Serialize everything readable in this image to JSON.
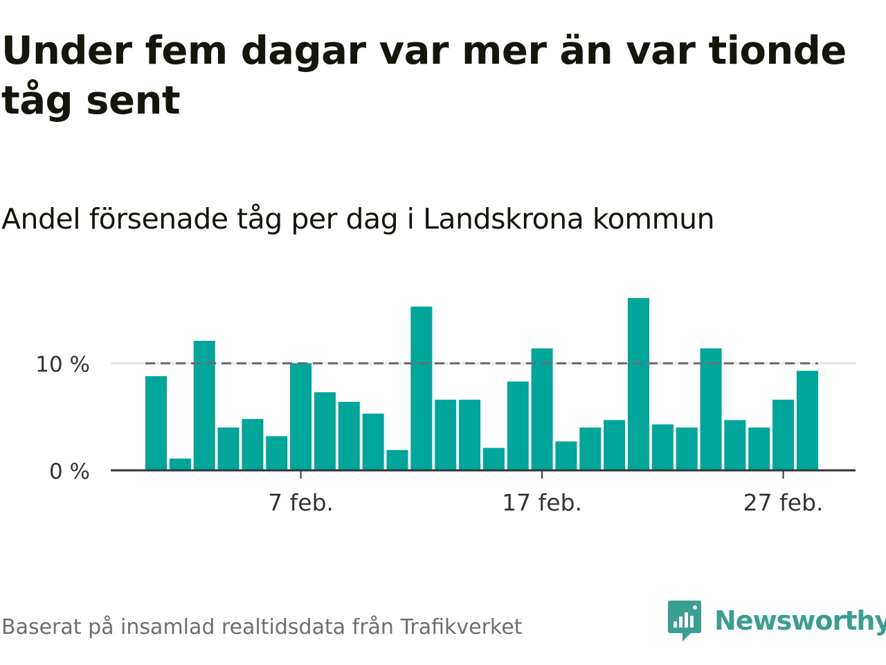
{
  "header": {
    "title": "Under fem dagar var mer än var tionde tåg sent",
    "subtitle": "Andel försenade tåg per dag i Landskrona kommun"
  },
  "footer": {
    "source": "Baserat på insamlad realtidsdata från Trafikverket",
    "brand": "Newsworthy",
    "brand_icon": "newsworthy-logo-icon"
  },
  "colors": {
    "bar": "#00a699",
    "threshold_line": "#6b6b73",
    "axis": "#333333",
    "grid": "#d9d9d9",
    "text": "#14160c",
    "brand": "#3a9e90"
  },
  "chart_data": {
    "type": "bar",
    "x_unit": "day of February",
    "days": [
      1,
      2,
      3,
      4,
      5,
      6,
      7,
      8,
      9,
      10,
      11,
      12,
      13,
      14,
      15,
      16,
      17,
      18,
      19,
      20,
      21,
      22,
      23,
      24,
      25,
      26,
      27,
      28
    ],
    "values": [
      8.8,
      1.1,
      12.1,
      4.0,
      4.8,
      3.2,
      10.0,
      7.3,
      6.4,
      5.3,
      1.9,
      15.3,
      6.6,
      6.6,
      2.1,
      8.3,
      11.4,
      2.7,
      4.0,
      4.7,
      16.1,
      4.3,
      4.0,
      11.4,
      4.7,
      4.0,
      6.6,
      9.3
    ],
    "y_unit": "%",
    "ylim": [
      0,
      17
    ],
    "yticks": [
      {
        "value": 0,
        "label": "0 %"
      },
      {
        "value": 10,
        "label": "10 %"
      }
    ],
    "xticks": [
      {
        "day": 7,
        "label": "7 feb."
      },
      {
        "day": 17,
        "label": "17 feb."
      },
      {
        "day": 27,
        "label": "27 feb."
      }
    ],
    "threshold": 10,
    "grid": true
  }
}
